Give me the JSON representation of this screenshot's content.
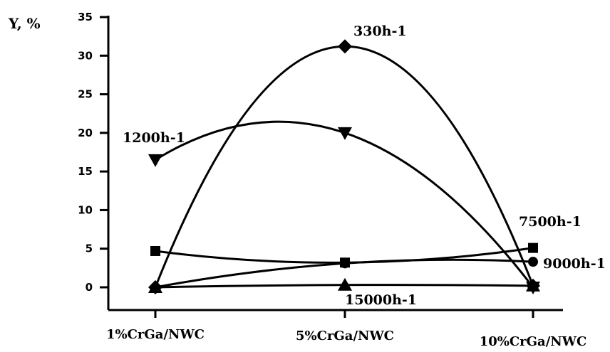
{
  "chart_data": {
    "type": "line",
    "title": "",
    "xlabel": "",
    "ylabel": "Y, %",
    "ylim": [
      0,
      35
    ],
    "yticks": [
      0,
      5,
      10,
      15,
      20,
      25,
      30,
      35
    ],
    "categories": [
      "1%CrGa/NWC",
      "5%CrGa/NWC",
      "10%CrGa/NWC"
    ],
    "grid": false,
    "series": [
      {
        "name": "330h-1",
        "marker": "diamond",
        "values": [
          0,
          31.2,
          0.2
        ],
        "color": "#000000"
      },
      {
        "name": "1200h-1",
        "marker": "triangle-down",
        "values": [
          16.5,
          20.0,
          0
        ],
        "color": "#000000"
      },
      {
        "name": "7500h-1",
        "marker": "square",
        "values": [
          4.7,
          3.2,
          5.1
        ],
        "color": "#000000"
      },
      {
        "name": "9000h-1",
        "marker": "circle",
        "values": [
          0,
          3.1,
          3.3
        ],
        "color": "#000000"
      },
      {
        "name": "15000h-1",
        "marker": "triangle-up",
        "values": [
          0,
          0.3,
          0.2
        ],
        "color": "#000000"
      }
    ]
  }
}
